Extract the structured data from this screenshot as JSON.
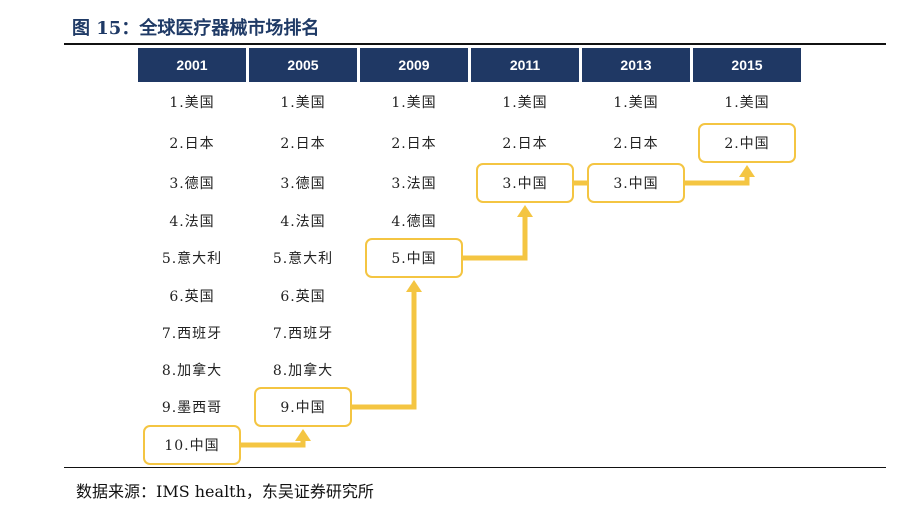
{
  "title": "图 15：全球医疗器械市场排名",
  "source": "数据来源：IMS health，东吴证券研究所",
  "accent_color": "#f4c542",
  "header_color": "#1f3864",
  "years": [
    "2001",
    "2005",
    "2009",
    "2011",
    "2013",
    "2015"
  ],
  "rankings": [
    [
      "1.美国",
      "2.日本",
      "3.德国",
      "4.法国",
      "5.意大利",
      "6.英国",
      "7.西班牙",
      "8.加拿大",
      "9.墨西哥",
      "10.中国"
    ],
    [
      "1.美国",
      "2.日本",
      "3.德国",
      "4.法国",
      "5.意大利",
      "6.英国",
      "7.西班牙",
      "8.加拿大",
      "9.中国"
    ],
    [
      "1.美国",
      "2.日本",
      "3.法国",
      "4.德国",
      "5.中国"
    ],
    [
      "1.美国",
      "2.日本",
      "3.中国"
    ],
    [
      "1.美国",
      "2.日本",
      "3.中国"
    ],
    [
      "1.美国",
      "2.中国"
    ]
  ],
  "highlight_country": "中国"
}
